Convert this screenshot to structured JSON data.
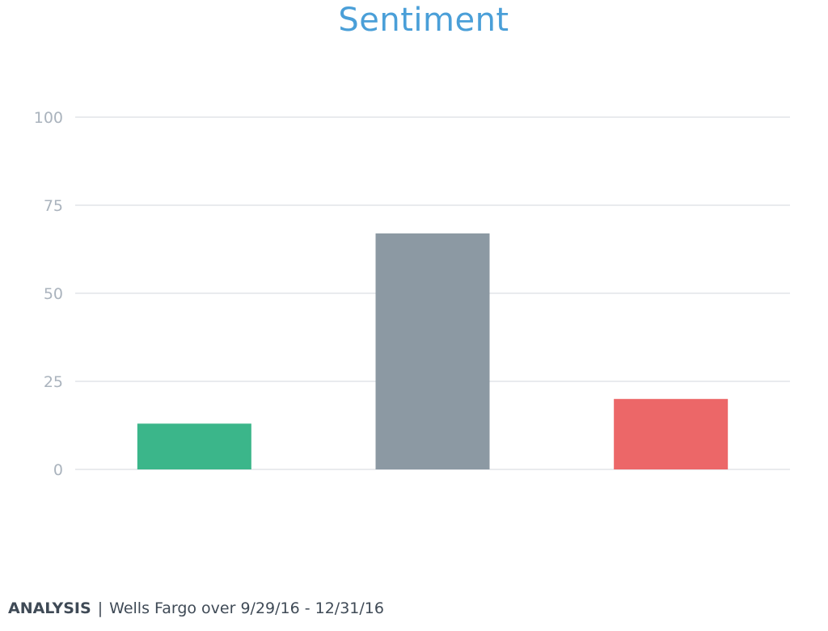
{
  "chart_data": {
    "type": "bar",
    "title": "Sentiment",
    "xlabel": "",
    "ylabel": "",
    "categories": [
      "",
      "",
      ""
    ],
    "values": [
      13,
      67,
      20
    ],
    "colors": [
      "#3bb68a",
      "#8c99a3",
      "#ec6768"
    ],
    "yticks": [
      "0",
      "25",
      "50",
      "75",
      "100"
    ],
    "ylim": [
      0,
      100
    ],
    "grid": true
  },
  "footer": {
    "label": "ANALYSIS",
    "separator": "|",
    "text": "Wells Fargo over 9/29/16 - 12/31/16"
  },
  "colors": {
    "title": "#4a9fd8",
    "grid": "#dcdfe3",
    "tick": "#aab3bd"
  }
}
